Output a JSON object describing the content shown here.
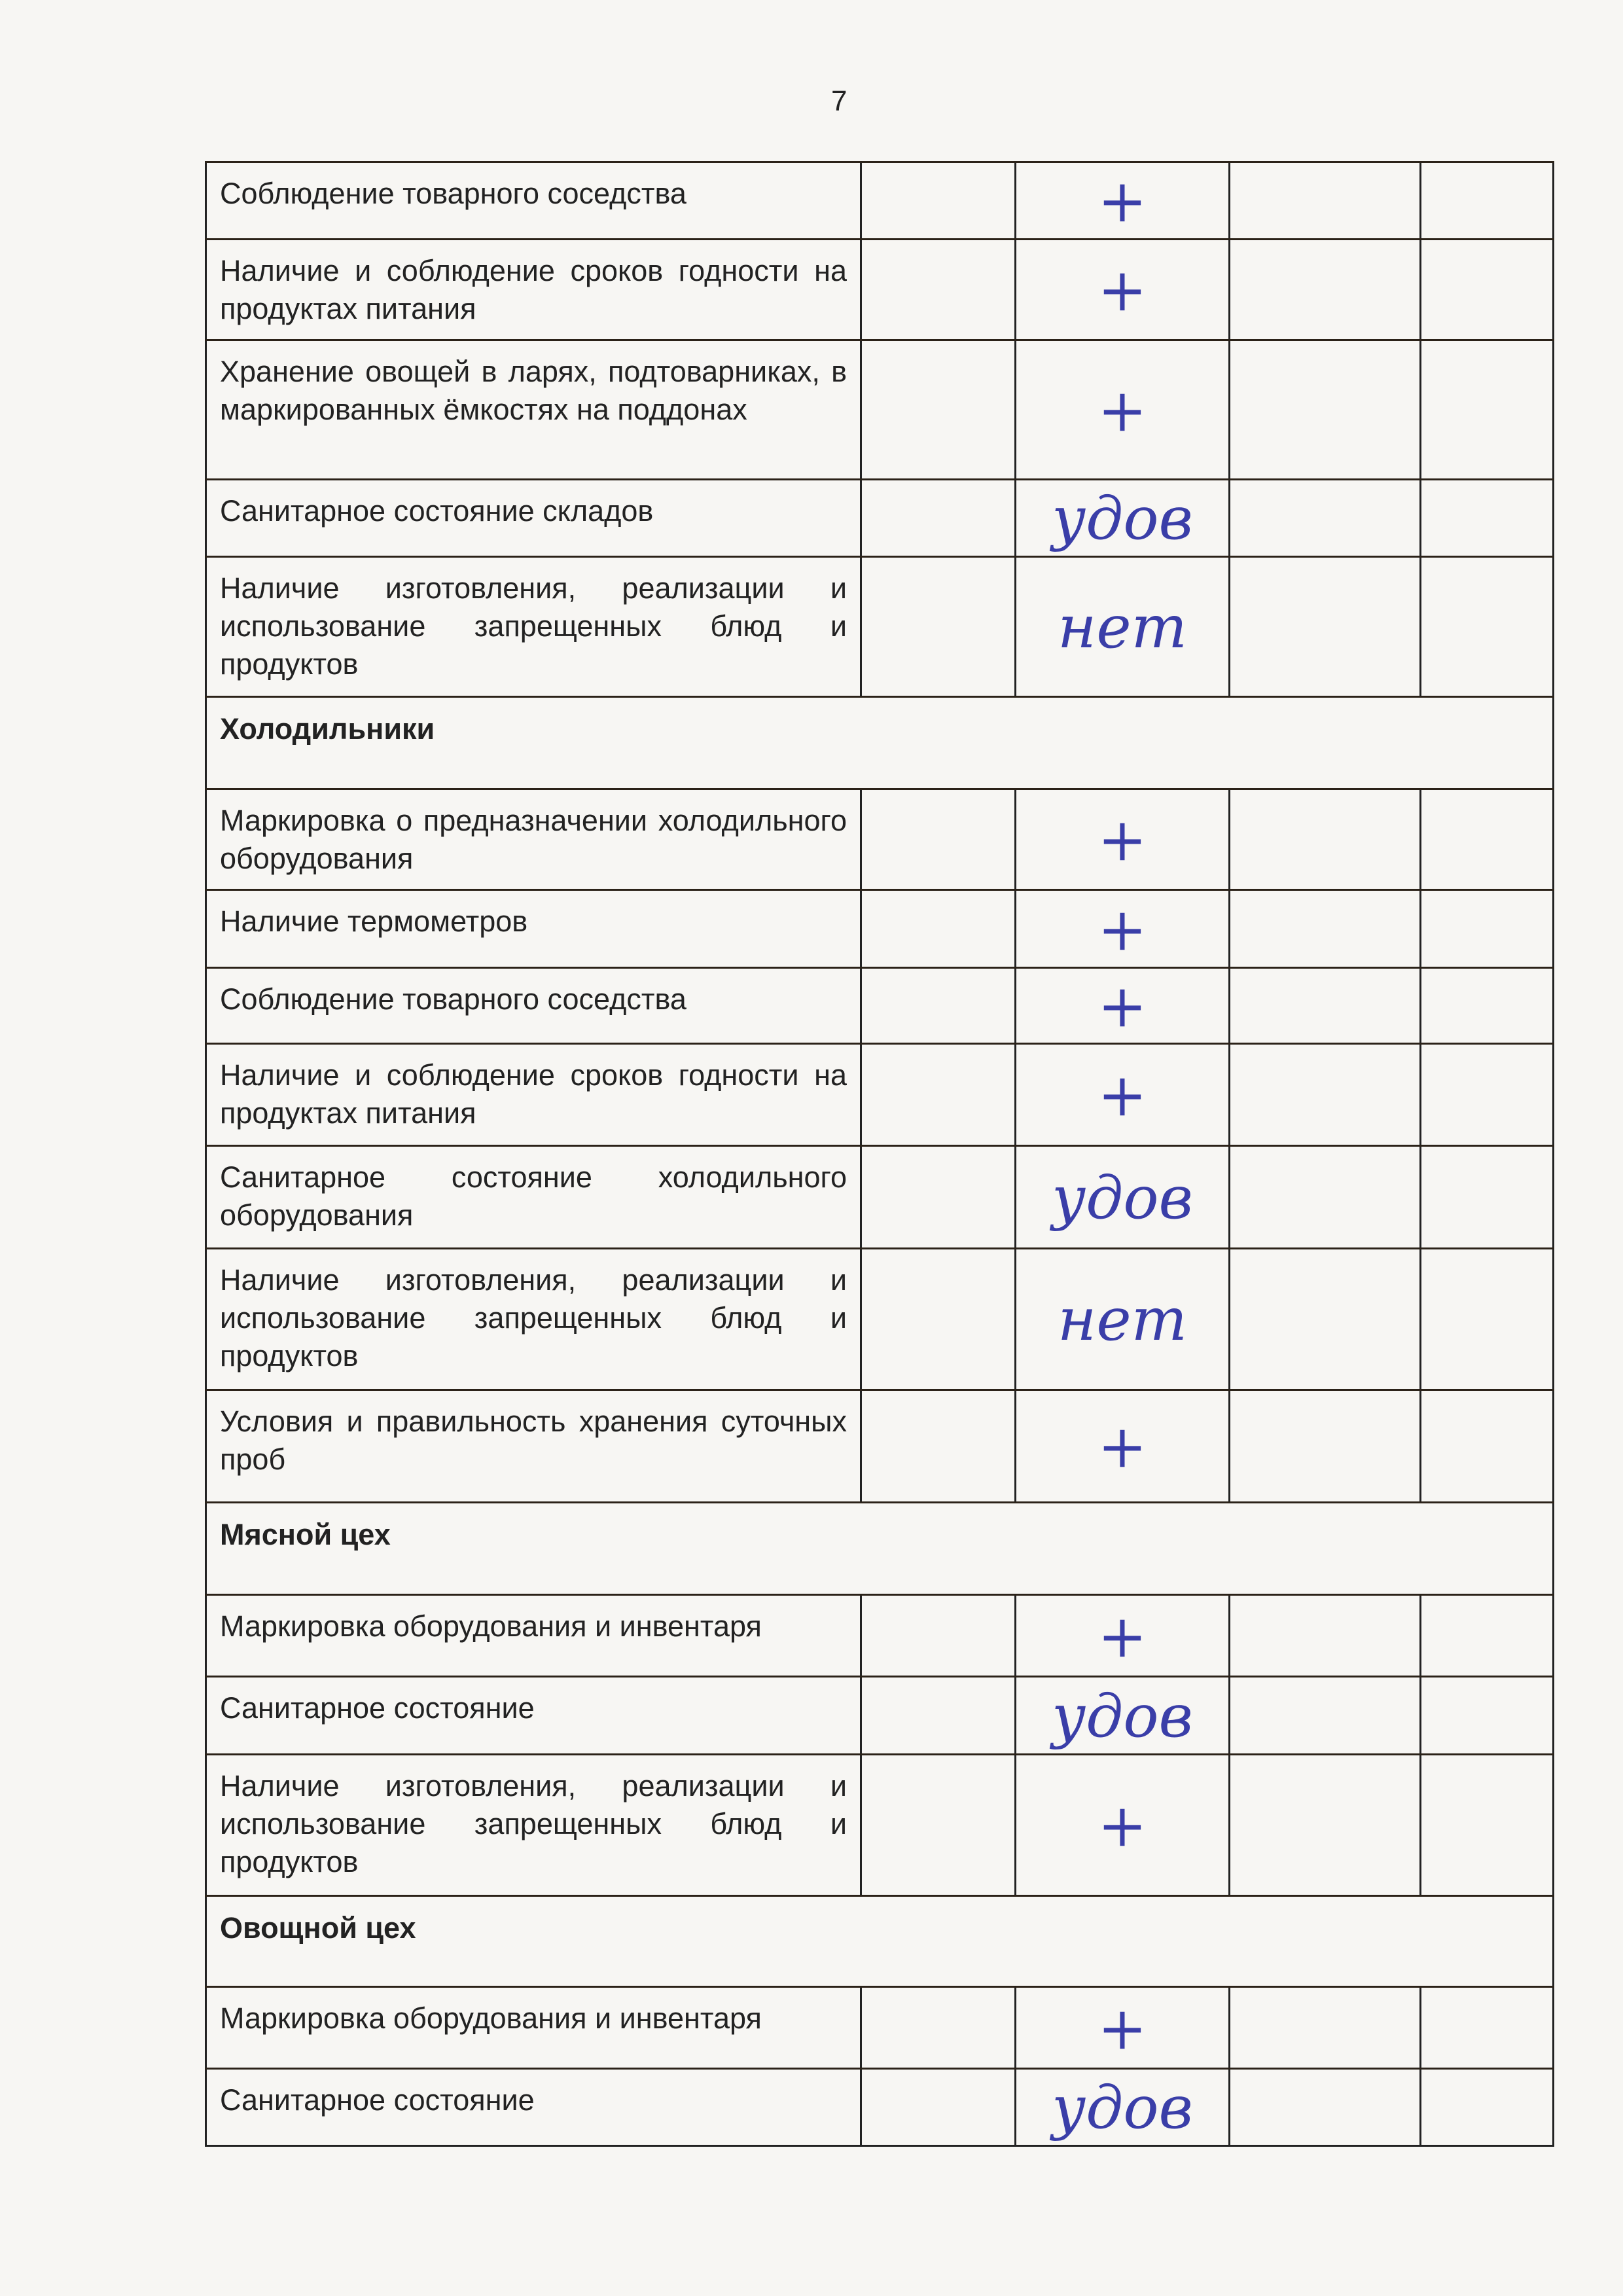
{
  "page_number": "7",
  "ink_color": "#3a3ea8",
  "rows": [
    {
      "type": "item",
      "text": "Соблюдение товарного соседства",
      "mark": "+"
    },
    {
      "type": "item",
      "text": "Наличие и соблюдение сроков годности на продуктах питания",
      "mark": "+"
    },
    {
      "type": "item",
      "text": "Хранение овощей в ларях, подтоварниках, в маркированных ёмкостях на поддонах",
      "mark": "+"
    },
    {
      "type": "item",
      "text": "Санитарное состояние складов",
      "mark": "удов"
    },
    {
      "type": "item",
      "text": "Наличие изготовления, реализации и использование запрещенных блюд и продуктов",
      "mark": "нет"
    },
    {
      "type": "section",
      "text": "Холодильники"
    },
    {
      "type": "item",
      "text": "Маркировка о предназначении холодильного оборудования",
      "mark": "+"
    },
    {
      "type": "item",
      "text": "Наличие термометров",
      "mark": "+"
    },
    {
      "type": "item",
      "text": "Соблюдение товарного соседства",
      "mark": "+"
    },
    {
      "type": "item",
      "text": "Наличие и соблюдение сроков годности на продуктах питания",
      "mark": "+"
    },
    {
      "type": "item",
      "text": "Санитарное состояние холодильного оборудования",
      "mark": "удов"
    },
    {
      "type": "item",
      "text": "Наличие изготовления, реализации и использование запрещенных блюд и продуктов",
      "mark": "нет"
    },
    {
      "type": "item",
      "text": "Условия и правильность хранения суточных проб",
      "mark": "+"
    },
    {
      "type": "section",
      "text": "Мясной цех"
    },
    {
      "type": "item",
      "text": "Маркировка оборудования и инвентаря",
      "mark": "+"
    },
    {
      "type": "item",
      "text": "Санитарное состояние",
      "mark": "удов"
    },
    {
      "type": "item",
      "text": "Наличие изготовления, реализации и использование запрещенных блюд и продуктов",
      "mark": "+"
    },
    {
      "type": "section",
      "text": "Овощной цех"
    },
    {
      "type": "item",
      "text": "Маркировка оборудования и инвентаря",
      "mark": "+"
    },
    {
      "type": "item",
      "text": "Санитарное состояние",
      "mark": "удов"
    }
  ]
}
